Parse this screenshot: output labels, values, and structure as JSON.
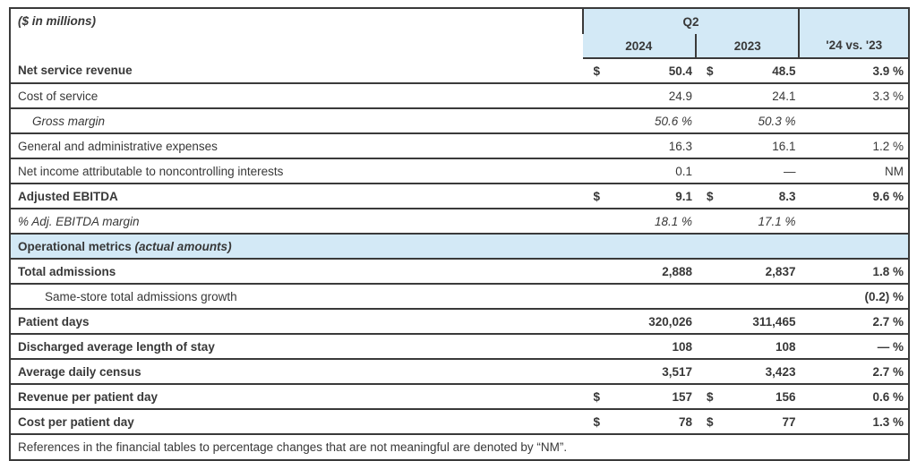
{
  "colors": {
    "header_fill": "#d3e9f6",
    "border": "#3a3a3a",
    "text": "#383838"
  },
  "table": {
    "corner_label": "($ in millions)",
    "header": {
      "group_label": "Q2",
      "col_2024": "2024",
      "col_2023": "2023",
      "change_label": "'24 vs. '23"
    },
    "rows": [
      {
        "type": "data",
        "label": "Net service revenue",
        "emphasis": "bold",
        "indent": 0,
        "cells": {
          "d1": "$",
          "v1": "50.4",
          "d2": "$",
          "v2": "48.5",
          "chg": "3.9 %"
        }
      },
      {
        "type": "data",
        "label": "Cost of service",
        "emphasis": "regular",
        "indent": 0,
        "cells": {
          "d1": "",
          "v1": "24.9",
          "d2": "",
          "v2": "24.1",
          "chg": "3.3 %"
        }
      },
      {
        "type": "data",
        "label": "Gross margin",
        "emphasis": "italic",
        "indent": 1,
        "cells": {
          "d1": "",
          "v1": "50.6 %",
          "d2": "",
          "v2": "50.3 %",
          "chg": ""
        }
      },
      {
        "type": "data",
        "label": "General and administrative expenses",
        "emphasis": "regular",
        "indent": 0,
        "cells": {
          "d1": "",
          "v1": "16.3",
          "d2": "",
          "v2": "16.1",
          "chg": "1.2 %"
        }
      },
      {
        "type": "data",
        "label": "Net income attributable to noncontrolling interests",
        "emphasis": "regular",
        "indent": 0,
        "cells": {
          "d1": "",
          "v1": "0.1",
          "d2": "",
          "v2": "—",
          "chg": "NM"
        }
      },
      {
        "type": "data",
        "label": "Adjusted EBITDA",
        "emphasis": "bold",
        "indent": 0,
        "cells": {
          "d1": "$",
          "v1": "9.1",
          "d2": "$",
          "v2": "8.3",
          "chg": "9.6 %"
        }
      },
      {
        "type": "data",
        "label": "% Adj. EBITDA margin",
        "emphasis": "italic",
        "indent": 0,
        "cells": {
          "d1": "",
          "v1": "18.1 %",
          "d2": "",
          "v2": "17.1 %",
          "chg": ""
        }
      },
      {
        "type": "section",
        "label": "Operational metrics",
        "label_suffix": "(actual amounts)"
      },
      {
        "type": "data",
        "label": "Total admissions",
        "emphasis": "bold",
        "indent": 0,
        "cells": {
          "d1": "",
          "v1": "2,888",
          "d2": "",
          "v2": "2,837",
          "chg": "1.8 %"
        }
      },
      {
        "type": "data",
        "label": "Same-store total admissions growth",
        "emphasis": "regular",
        "indent": 2,
        "cells": {
          "d1": "",
          "v1": "",
          "d2": "",
          "v2": "",
          "chg": "(0.2) %"
        },
        "chg_emphasis": "bold"
      },
      {
        "type": "data",
        "label": "Patient days",
        "emphasis": "bold",
        "indent": 0,
        "cells": {
          "d1": "",
          "v1": "320,026",
          "d2": "",
          "v2": "311,465",
          "chg": "2.7 %"
        }
      },
      {
        "type": "data",
        "label": "Discharged average length of stay",
        "emphasis": "bold",
        "indent": 0,
        "cells": {
          "d1": "",
          "v1": "108",
          "d2": "",
          "v2": "108",
          "chg": "— %"
        }
      },
      {
        "type": "data",
        "label": "Average daily census",
        "emphasis": "bold",
        "indent": 0,
        "cells": {
          "d1": "",
          "v1": "3,517",
          "d2": "",
          "v2": "3,423",
          "chg": "2.7 %"
        }
      },
      {
        "type": "data",
        "label": "Revenue per patient day",
        "emphasis": "bold",
        "indent": 0,
        "cells": {
          "d1": "$",
          "v1": "157",
          "d2": "$",
          "v2": "156",
          "chg": "0.6 %"
        }
      },
      {
        "type": "data",
        "label": "Cost per patient day",
        "emphasis": "bold",
        "indent": 0,
        "cells": {
          "d1": "$",
          "v1": "78",
          "d2": "$",
          "v2": "77",
          "chg": "1.3 %"
        }
      }
    ],
    "footnote": "References in the financial tables to percentage changes that are not meaningful are denoted by “NM”."
  }
}
